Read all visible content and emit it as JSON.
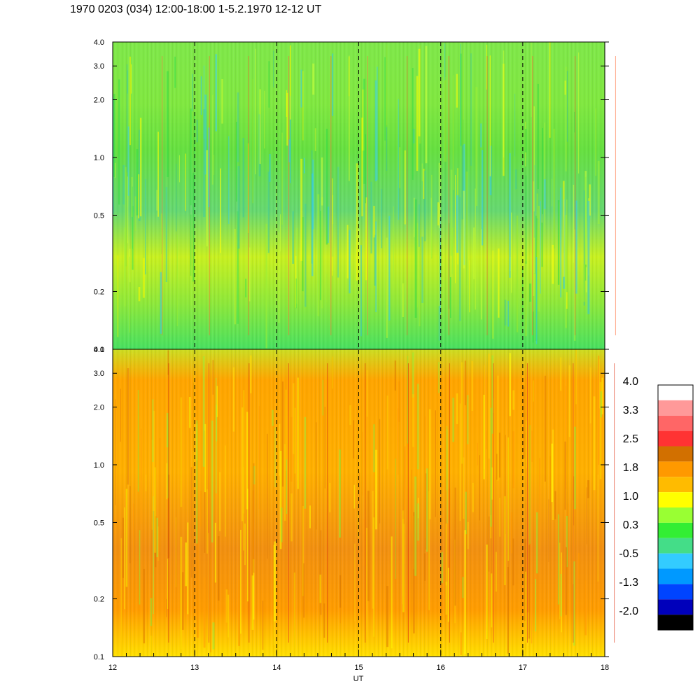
{
  "title": "1970 0203 (034) 12:00-18:00 1-5.2.1970  12-12 UT",
  "chart_data": {
    "type": "heatmap",
    "xlabel": "UT",
    "x_ticks": [
      "12",
      "13",
      "14",
      "15",
      "16",
      "17",
      "18"
    ],
    "xlim": [
      12,
      18
    ],
    "y_scale": "log",
    "ylim": [
      0.1,
      4.0
    ],
    "y_ticks": [
      "0.1",
      "0.2",
      "0.5",
      "1.0",
      "2.0",
      "3.0",
      "4.0"
    ],
    "y_tick_values": [
      0.1,
      0.2,
      0.5,
      1.0,
      2.0,
      3.0,
      4.0
    ],
    "dashed_hours": [
      13,
      14,
      15,
      16,
      17
    ],
    "panels": [
      {
        "name": "upper",
        "dominant_range": [
          0.3,
          1.0
        ]
      },
      {
        "name": "lower",
        "dominant_range": [
          1.0,
          2.5
        ]
      }
    ],
    "colorbar": {
      "labels": [
        "4.0",
        "3.3",
        "2.5",
        "1.8",
        "1.0",
        "0.3",
        "-0.5",
        "-1.3",
        "-2.0"
      ],
      "colors": [
        "#ffffff",
        "#ff9999",
        "#ff6666",
        "#ff3333",
        "#d27000",
        "#ff9900",
        "#ffbb00",
        "#ffff00",
        "#99ff33",
        "#33ee33",
        "#44dd88",
        "#33ccff",
        "#0099ff",
        "#0044ff",
        "#0000bb",
        "#000000"
      ]
    }
  }
}
